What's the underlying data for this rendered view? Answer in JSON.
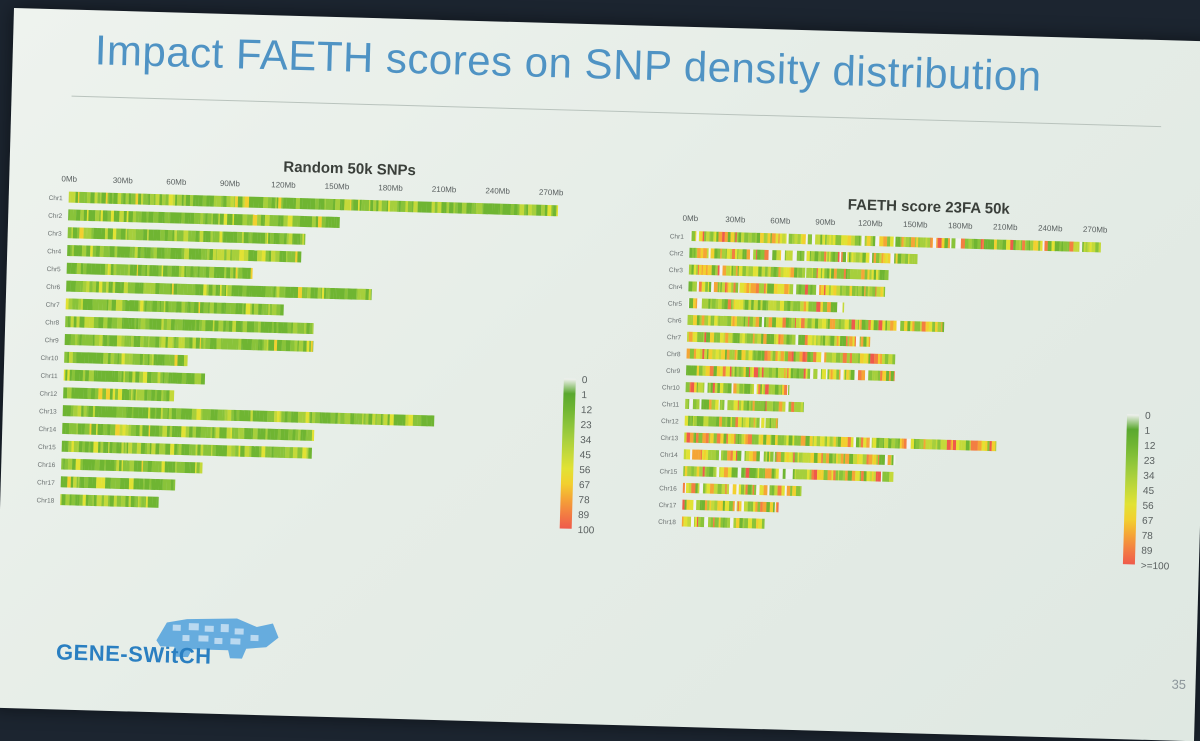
{
  "slide": {
    "title": "Impact FAETH scores on SNP density distribution",
    "brand": "GENE-SWitCH",
    "page_number": "35"
  },
  "legend": {
    "labels_left": [
      "0",
      "1",
      "12",
      "23",
      "34",
      "45",
      "56",
      "67",
      "78",
      "89",
      "100"
    ],
    "labels_right": [
      "0",
      "1",
      "12",
      "23",
      "34",
      "45",
      "56",
      "67",
      "78",
      "89",
      ">=100"
    ],
    "colors": [
      "#f2f2f2",
      "#5aa82f",
      "#6fb532",
      "#89c33a",
      "#a6cf3c",
      "#c4d93a",
      "#e2e234",
      "#f2d02f",
      "#f5a536",
      "#f37e42",
      "#ef5a4b"
    ]
  },
  "chart_data": [
    {
      "type": "heatmap",
      "title": "Random 50k SNPs",
      "x_ticks": [
        "0Mb",
        "30Mb",
        "60Mb",
        "90Mb",
        "120Mb",
        "150Mb",
        "180Mb",
        "210Mb",
        "240Mb",
        "270Mb"
      ],
      "xlim": [
        0,
        280
      ],
      "chromosomes": [
        "Chr1",
        "Chr2",
        "Chr3",
        "Chr4",
        "Chr5",
        "Chr6",
        "Chr7",
        "Chr8",
        "Chr9",
        "Chr10",
        "Chr11",
        "Chr12",
        "Chr13",
        "Chr14",
        "Chr15",
        "Chr16",
        "Chr17",
        "Chr18"
      ],
      "lengths_mb": [
        274,
        152,
        133,
        131,
        104,
        171,
        122,
        139,
        139,
        69,
        79,
        62,
        208,
        141,
        140,
        79,
        64,
        55
      ],
      "density_min": 0,
      "density_max": 100,
      "palette": "green-dominant",
      "seed": 7
    },
    {
      "type": "heatmap",
      "title": "FAETH score 23FA 50k",
      "x_ticks": [
        "0Mb",
        "30Mb",
        "60Mb",
        "90Mb",
        "120Mb",
        "150Mb",
        "180Mb",
        "210Mb",
        "240Mb",
        "270Mb"
      ],
      "xlim": [
        0,
        280
      ],
      "chromosomes": [
        "Chr1",
        "Chr2",
        "Chr3",
        "Chr4",
        "Chr5",
        "Chr6",
        "Chr7",
        "Chr8",
        "Chr9",
        "Chr10",
        "Chr11",
        "Chr12",
        "Chr13",
        "Chr14",
        "Chr15",
        "Chr16",
        "Chr17",
        "Chr18"
      ],
      "lengths_mb": [
        274,
        152,
        133,
        131,
        104,
        171,
        122,
        139,
        139,
        69,
        79,
        62,
        208,
        141,
        140,
        79,
        64,
        55
      ],
      "density_min": 0,
      "density_max": 100,
      "palette": "mixed-hotspots",
      "seed": 19
    }
  ]
}
